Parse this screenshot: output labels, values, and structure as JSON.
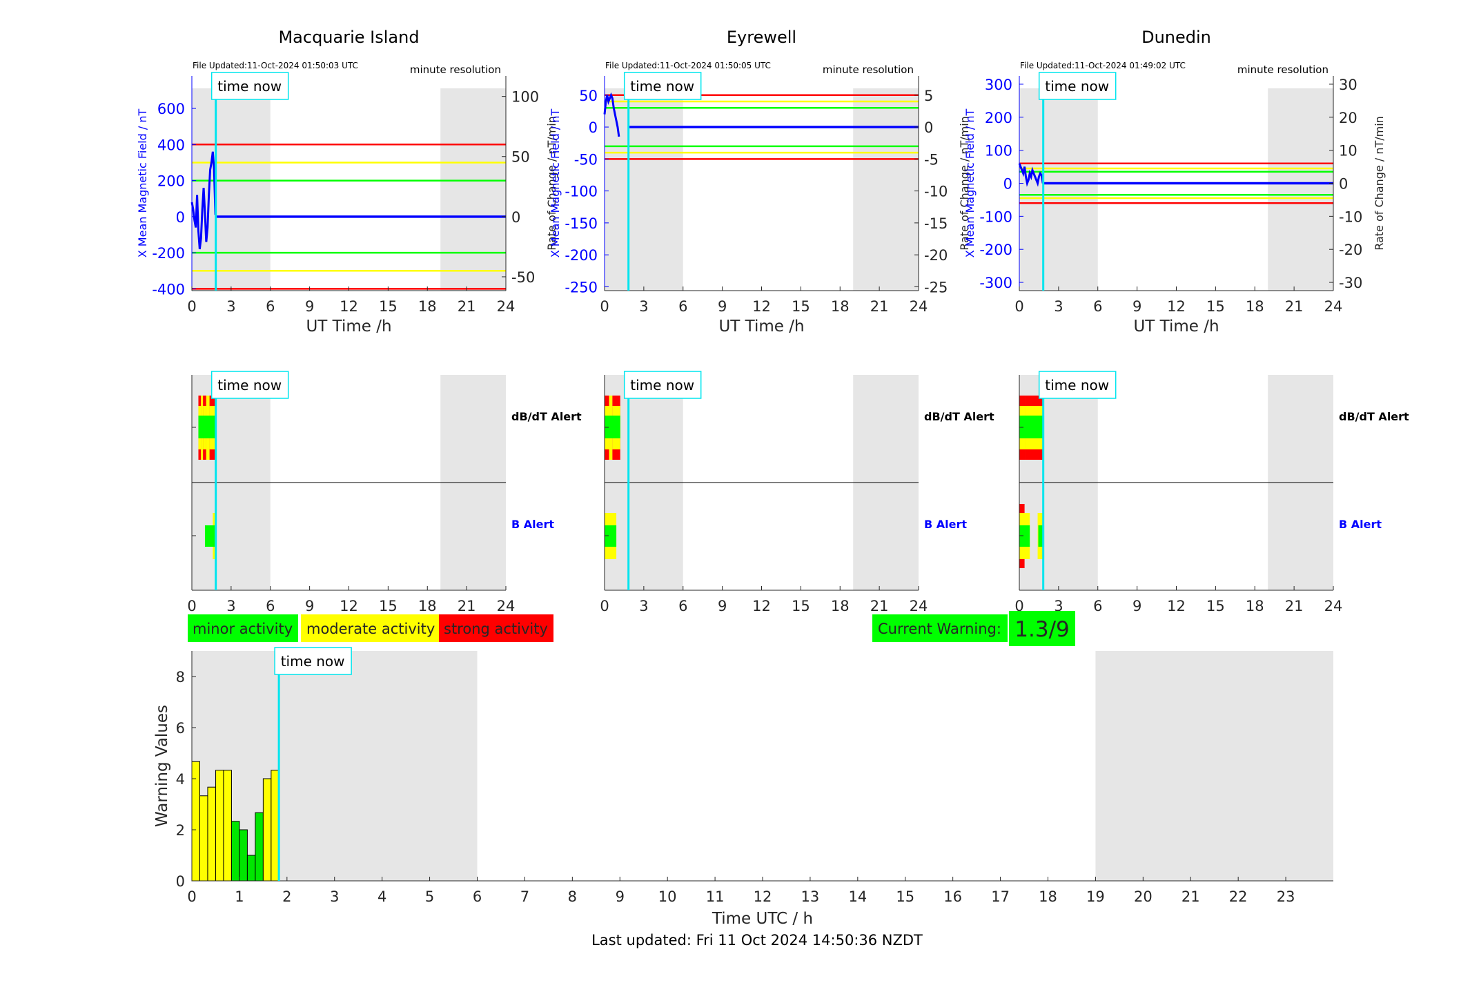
{
  "footer": {
    "last_updated": "Last updated: Fri 11 Oct 2024 14:50:36 NZDT"
  },
  "legend": {
    "minor": "minor activity",
    "moderate": "moderate activity",
    "strong": "strong activity"
  },
  "current_warning": {
    "label": "Current Warning:",
    "value": "1.3/9"
  },
  "colors": {
    "red": "#ff0000",
    "yellow": "#ffff00",
    "green": "#00ff00",
    "blue": "#0000ff",
    "cyan": "#00e5ee",
    "shade": "#e6e6e6",
    "bar_yellow": "#ffff00",
    "bar_green": "#00e600"
  },
  "chart_data": [
    {
      "type": "line",
      "title": "Macquarie Island",
      "file_updated": "File Updated:11-Oct-2024 01:50:03 UTC",
      "resolution_label": "minute resolution",
      "xlabel": "UT Time /h",
      "ylabel_left": "X Mean Magnetic Field / nT",
      "ylabel_right": "Rate of Change / nT/min",
      "xlim": [
        0,
        24
      ],
      "xticks": [
        0,
        3,
        6,
        9,
        12,
        15,
        18,
        21,
        24
      ],
      "ylim_left": [
        -410,
        780
      ],
      "yticks_left": [
        -400,
        -200,
        0,
        200,
        400,
        600
      ],
      "ylim_right": [
        -61.5,
        117
      ],
      "yticks_right": [
        -50,
        0,
        50,
        100
      ],
      "thresholds_right": [
        {
          "level": "strong",
          "values": [
            -60,
            60
          ]
        },
        {
          "level": "moderate",
          "values": [
            -45,
            45
          ]
        },
        {
          "level": "minor",
          "values": [
            -30,
            30
          ]
        }
      ],
      "shaded_hours": [
        [
          0,
          6
        ],
        [
          19,
          24
        ]
      ],
      "time_now_label": "time now",
      "time_now": 1.83,
      "series": [
        {
          "values_x": [
            0,
            0.1,
            0.2,
            0.3,
            0.4,
            0.5,
            0.6,
            0.7,
            0.8,
            0.9,
            1.0,
            1.1,
            1.2,
            1.3,
            1.4,
            1.5,
            1.6,
            1.7,
            1.8
          ],
          "values_y": [
            80,
            40,
            -20,
            -60,
            120,
            -80,
            -180,
            -120,
            40,
            160,
            20,
            -140,
            -60,
            120,
            260,
            300,
            360,
            260,
            10
          ]
        },
        {
          "values_x": [
            1.83,
            24
          ],
          "values_y": [
            0,
            0
          ]
        }
      ]
    },
    {
      "type": "line",
      "title": "Eyrewell",
      "file_updated": "File Updated:11-Oct-2024 01:50:05 UTC",
      "resolution_label": "minute resolution",
      "xlabel": "UT Time /h",
      "ylabel_left": "X Mean Magnetic Field / nT",
      "ylabel_right": "Rate of Change / nT/min",
      "xlim": [
        0,
        24
      ],
      "xticks": [
        0,
        3,
        6,
        9,
        12,
        15,
        18,
        21,
        24
      ],
      "ylim_left": [
        -256,
        80
      ],
      "yticks_left": [
        -250,
        -200,
        -150,
        -100,
        -50,
        0,
        50
      ],
      "ylim_right": [
        -25.6,
        8
      ],
      "yticks_right": [
        -25,
        -20,
        -15,
        -10,
        -5,
        0,
        5
      ],
      "thresholds_right": [
        {
          "level": "strong",
          "values": [
            -5,
            5
          ]
        },
        {
          "level": "moderate",
          "values": [
            -4,
            4
          ]
        },
        {
          "level": "minor",
          "values": [
            -3,
            3
          ]
        }
      ],
      "shaded_hours": [
        [
          0,
          6
        ],
        [
          19,
          24
        ]
      ],
      "time_now_label": "time now",
      "time_now": 1.83,
      "series": [
        {
          "values_x": [
            0,
            0.1,
            0.2,
            0.3,
            0.4,
            0.5,
            0.6,
            0.7,
            0.8,
            0.9,
            1.0,
            1.1
          ],
          "values_y": [
            20,
            40,
            50,
            40,
            45,
            50,
            45,
            30,
            20,
            10,
            0,
            -15
          ]
        },
        {
          "values_x": [
            1.83,
            24
          ],
          "values_y": [
            0,
            0
          ]
        }
      ]
    },
    {
      "type": "line",
      "title": "Dunedin",
      "file_updated": "File Updated:11-Oct-2024 01:49:02 UTC",
      "resolution_label": "minute resolution",
      "xlabel": "UT Time /h",
      "ylabel_left": "X Mean Magnetic Field / nT",
      "ylabel_right": "Rate of Change / nT/min",
      "xlim": [
        0,
        24
      ],
      "xticks": [
        0,
        3,
        6,
        9,
        12,
        15,
        18,
        21,
        24
      ],
      "ylim_left": [
        -325,
        325
      ],
      "yticks_left": [
        -300,
        -200,
        -100,
        0,
        100,
        200,
        300
      ],
      "ylim_right": [
        -32.5,
        32.5
      ],
      "yticks_right": [
        -30,
        -20,
        -10,
        0,
        10,
        20,
        30
      ],
      "thresholds_right": [
        {
          "level": "strong",
          "values": [
            -6,
            6
          ]
        },
        {
          "level": "moderate",
          "values": [
            -4.5,
            4.5
          ]
        },
        {
          "level": "minor",
          "values": [
            -3.5,
            3.5
          ]
        }
      ],
      "shaded_hours": [
        [
          0,
          6
        ],
        [
          19,
          24
        ]
      ],
      "time_now_label": "time now",
      "time_now": 1.83,
      "series": [
        {
          "values_x": [
            0,
            0.1,
            0.2,
            0.3,
            0.4,
            0.5,
            0.6,
            0.7,
            0.8,
            0.9,
            1.0,
            1.1,
            1.2,
            1.3,
            1.4,
            1.5,
            1.6,
            1.7,
            1.8
          ],
          "values_y": [
            60,
            50,
            40,
            30,
            50,
            20,
            0,
            10,
            30,
            20,
            40,
            30,
            20,
            10,
            0,
            20,
            30,
            25,
            0
          ]
        },
        {
          "values_x": [
            1.83,
            24
          ],
          "values_y": [
            0,
            0
          ]
        }
      ]
    },
    {
      "type": "heatmap",
      "station": "Macquarie Island",
      "row_labels": [
        "dB/dT Alert",
        "B Alert"
      ],
      "xlim": [
        0,
        24
      ],
      "xticks": [
        0,
        3,
        6,
        9,
        12,
        15,
        18,
        21,
        24
      ],
      "shaded_hours": [
        [
          0,
          6
        ],
        [
          19,
          24
        ]
      ],
      "time_now_label": "time now",
      "time_now": 1.83,
      "dbdt_alert": [
        {
          "start": 0.5,
          "end": 0.7,
          "level": "strong"
        },
        {
          "start": 0.7,
          "end": 0.85,
          "level": "moderate"
        },
        {
          "start": 0.85,
          "end": 1.1,
          "level": "strong"
        },
        {
          "start": 1.1,
          "end": 1.35,
          "level": "moderate"
        },
        {
          "start": 1.35,
          "end": 1.8,
          "level": "strong"
        }
      ],
      "dbdt_inner": [
        {
          "start": 0.5,
          "end": 1.8,
          "level": "minor"
        }
      ],
      "b_alert": [
        {
          "start": 1.6,
          "end": 1.8,
          "level": "moderate"
        },
        {
          "start": 1.0,
          "end": 1.75,
          "level": "minor"
        }
      ]
    },
    {
      "type": "heatmap",
      "station": "Eyrewell",
      "row_labels": [
        "dB/dT Alert",
        "B Alert"
      ],
      "xlim": [
        0,
        24
      ],
      "xticks": [
        0,
        3,
        6,
        9,
        12,
        15,
        18,
        21,
        24
      ],
      "shaded_hours": [
        [
          0,
          6
        ],
        [
          19,
          24
        ]
      ],
      "time_now_label": "time now",
      "time_now": 1.83,
      "dbdt_alert": [
        {
          "start": 0,
          "end": 0.35,
          "level": "strong"
        },
        {
          "start": 0.35,
          "end": 0.6,
          "level": "moderate"
        },
        {
          "start": 0.6,
          "end": 1.2,
          "level": "strong"
        }
      ],
      "dbdt_inner": [
        {
          "start": 0,
          "end": 1.2,
          "level": "minor"
        }
      ],
      "b_alert": [
        {
          "start": 0,
          "end": 0.9,
          "level": "moderate"
        },
        {
          "start": 0,
          "end": 0.9,
          "level": "minor"
        }
      ]
    },
    {
      "type": "heatmap",
      "station": "Dunedin",
      "row_labels": [
        "dB/dT Alert",
        "B Alert"
      ],
      "xlim": [
        0,
        24
      ],
      "xticks": [
        0,
        3,
        6,
        9,
        12,
        15,
        18,
        21,
        24
      ],
      "shaded_hours": [
        [
          0,
          6
        ],
        [
          19,
          24
        ]
      ],
      "time_now_label": "time now",
      "time_now": 1.83,
      "dbdt_alert": [
        {
          "start": 0,
          "end": 0.5,
          "level": "strong"
        },
        {
          "start": 0.5,
          "end": 1.8,
          "level": "strong"
        }
      ],
      "dbdt_inner": [
        {
          "start": 0,
          "end": 1.9,
          "level": "minor"
        }
      ],
      "b_alert": [
        {
          "start": 0,
          "end": 0.4,
          "level": "strong"
        },
        {
          "start": 0,
          "end": 0.8,
          "level": "moderate"
        },
        {
          "start": 1.4,
          "end": 1.9,
          "level": "moderate"
        },
        {
          "start": 0,
          "end": 0.8,
          "level": "minor"
        },
        {
          "start": 1.45,
          "end": 1.9,
          "level": "minor"
        }
      ]
    },
    {
      "type": "bar",
      "xlabel": "Time UTC / h",
      "ylabel": "Warning Values",
      "xlim": [
        0,
        24
      ],
      "xticks": [
        0,
        1,
        2,
        3,
        4,
        5,
        6,
        7,
        8,
        9,
        10,
        11,
        12,
        13,
        14,
        15,
        16,
        17,
        18,
        19,
        20,
        21,
        22,
        23
      ],
      "ylim": [
        0,
        9
      ],
      "yticks": [
        0,
        2,
        4,
        6,
        8
      ],
      "shaded_hours": [
        [
          0,
          6
        ],
        [
          19,
          24
        ]
      ],
      "time_now_label": "time now",
      "time_now": 1.83,
      "bar_width_h": 0.1667,
      "categories": [
        0,
        0.1667,
        0.3333,
        0.5,
        0.6667,
        0.8333,
        1.0,
        1.1667,
        1.3333,
        1.5,
        1.6667
      ],
      "values": [
        4.67,
        3.33,
        3.67,
        4.33,
        4.33,
        2.33,
        2.0,
        1.0,
        2.67,
        4.0,
        4.33
      ],
      "levels": [
        "moderate",
        "moderate",
        "moderate",
        "moderate",
        "moderate",
        "minor",
        "minor",
        "minor",
        "minor",
        "moderate",
        "moderate"
      ]
    }
  ]
}
